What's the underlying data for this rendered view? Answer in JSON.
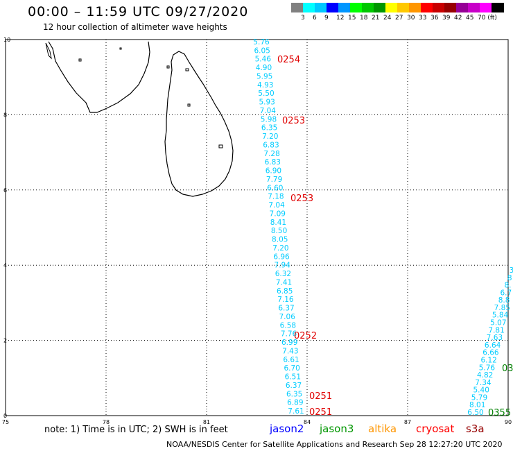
{
  "header": {
    "title": "00:00 – 11:59 UTC 09/27/2020",
    "subtitle": "12 hour collection of altimeter wave heights"
  },
  "colorbar": {
    "colors": [
      "#808080",
      "#00ffff",
      "#00c8ff",
      "#0000ff",
      "#0096ff",
      "#00ff00",
      "#00c800",
      "#009600",
      "#ffff00",
      "#ffc800",
      "#ff9600",
      "#ff0000",
      "#c80000",
      "#960000",
      "#960096",
      "#c800c8",
      "#ff00ff",
      "#000000"
    ],
    "labels": [
      "3",
      "6",
      "9",
      "12",
      "15",
      "18",
      "21",
      "24",
      "27",
      "30",
      "33",
      "36",
      "39",
      "42",
      "45",
      "70 (ft)"
    ]
  },
  "map": {
    "lon_range": [
      75,
      90
    ],
    "lat_range": [
      0,
      10
    ],
    "lon_ticks": [
      "75",
      "78",
      "81",
      "84",
      "87",
      "90"
    ],
    "lat_ticks": [
      "0",
      "2",
      "4",
      "6",
      "8",
      "10"
    ],
    "tracks": [
      {
        "sat": "cryosat",
        "color": "#00ccff",
        "values": [
          "5.76",
          "6.05",
          "5.46",
          "4.90",
          "5.95",
          "4.93",
          "5.50",
          "5.93",
          "7.04",
          "5.98",
          "6.35",
          "7.20",
          "6.83",
          "7.28",
          "6.83",
          "6.90",
          "7.79",
          "6.60",
          "7.18",
          "7.04",
          "7.09",
          "8.41",
          "8.50",
          "8.05",
          "7.20",
          "6.96",
          "7.94",
          "6.32",
          "7.41",
          "6.85",
          "7.16",
          "6.37",
          "7.06",
          "6.58",
          "7.76",
          "6.99",
          "7.43",
          "6.61",
          "6.70",
          "6.51",
          "6.37",
          "6.35",
          "6.89",
          "7.61"
        ]
      },
      {
        "sat": "s3a",
        "color": "#00ccff",
        "values": [
          "6.50",
          "8.01",
          "5.79",
          "5.40",
          "7.34",
          "4.82",
          "5.76",
          "6.12",
          "6.66",
          "6.64",
          "7.63",
          "7.81",
          "5.07",
          "5.84",
          "7.85",
          "8.8",
          "6.7",
          "8.",
          "8",
          "3"
        ]
      }
    ],
    "time_labels": [
      {
        "text": "0254",
        "color": "#e00000"
      },
      {
        "text": "0253",
        "color": "#e00000"
      },
      {
        "text": "0253",
        "color": "#e00000"
      },
      {
        "text": "0252",
        "color": "#e00000"
      },
      {
        "text": "0251",
        "color": "#e00000"
      },
      {
        "text": "0251",
        "color": "#e00000"
      },
      {
        "text": "03",
        "color": "#008000"
      },
      {
        "text": "0355",
        "color": "#008000"
      }
    ]
  },
  "footer": {
    "note": "note:  1) Time is in UTC; 2) SWH is in feet",
    "satellites": [
      {
        "name": "jason2",
        "color": "#0000ff"
      },
      {
        "name": "jason3",
        "color": "#009600"
      },
      {
        "name": "altika",
        "color": "#ff9600"
      },
      {
        "name": "cryosat",
        "color": "#ff0000"
      },
      {
        "name": "s3a",
        "color": "#960000"
      }
    ],
    "credit": "NOAA/NESDIS Center for Satellite Applications and Research     Sep 28 12:27:20 UTC 2020"
  }
}
